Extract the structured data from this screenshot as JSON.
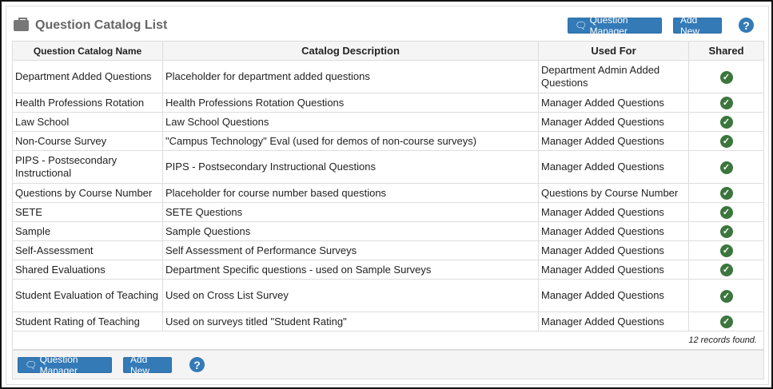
{
  "header": {
    "title": "Question Catalog List",
    "icon": "briefcase-icon",
    "question_manager_label": "Question Manager",
    "add_new_label": "Add New",
    "help": "?"
  },
  "table": {
    "columns": [
      "Question Catalog Name",
      "Catalog Description",
      "Used For",
      "Shared"
    ],
    "rows": [
      {
        "name": "Department Added Questions",
        "description": "Placeholder for department added questions",
        "used_for": "Department Admin Added Questions",
        "shared": true
      },
      {
        "name": "Health Professions Rotation",
        "description": "Health Professions Rotation Questions",
        "used_for": "Manager Added Questions",
        "shared": true
      },
      {
        "name": "Law School",
        "description": "Law School Questions",
        "used_for": "Manager Added Questions",
        "shared": true
      },
      {
        "name": "Non-Course Survey",
        "description": "\"Campus Technology\" Eval (used for demos of non-course surveys)",
        "used_for": "Manager Added Questions",
        "shared": true
      },
      {
        "name": "PIPS - Postsecondary Instructional",
        "description": "PIPS - Postsecondary Instructional Questions",
        "used_for": "Manager Added Questions",
        "shared": true
      },
      {
        "name": "Questions by Course Number",
        "description": "Placeholder for course number based questions",
        "used_for": "Questions by Course Number",
        "shared": true
      },
      {
        "name": "SETE",
        "description": "SETE Questions",
        "used_for": "Manager Added Questions",
        "shared": true
      },
      {
        "name": "Sample",
        "description": "Sample Questions",
        "used_for": "Manager Added Questions",
        "shared": true
      },
      {
        "name": "Self-Assessment",
        "description": "Self Assessment of Performance Surveys",
        "used_for": "Manager Added Questions",
        "shared": true
      },
      {
        "name": "Shared Evaluations",
        "description": "Department Specific questions - used on Sample Surveys",
        "used_for": "Manager Added Questions",
        "shared": true
      },
      {
        "name": "Student Evaluation of Teaching",
        "description": "Used on Cross List Survey",
        "used_for": "Manager Added Questions",
        "shared": true
      },
      {
        "name": "Student Rating of Teaching",
        "description": "Used on surveys titled \"Student Rating\"",
        "used_for": "Manager Added Questions",
        "shared": true
      }
    ],
    "records_found": "12 records found."
  },
  "footer": {
    "question_manager_label": "Question Manager",
    "add_new_label": "Add New",
    "help": "?"
  },
  "colors": {
    "button": "#337ab7",
    "check": "#3c763d"
  }
}
